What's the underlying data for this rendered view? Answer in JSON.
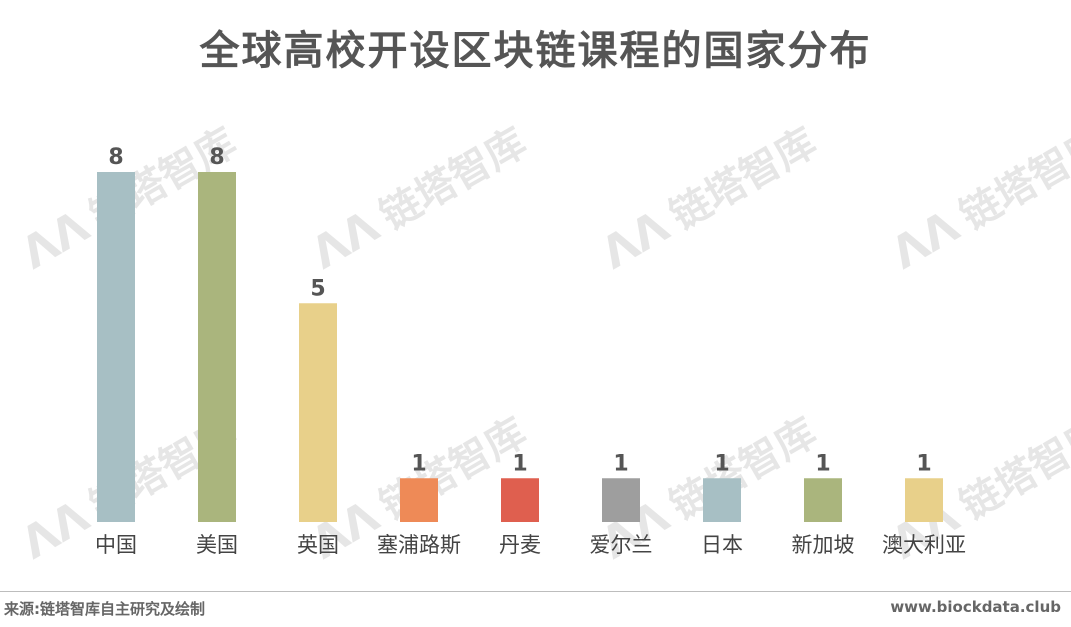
{
  "title": "全球高校开设区块链课程的国家分布",
  "watermark": {
    "text": "链塔智库",
    "logo": "ΛΛ"
  },
  "footer": {
    "source": "来源:链塔智库自主研究及绘制",
    "site": "www.biockdata.club"
  },
  "chart_data": {
    "type": "bar",
    "title": "全球高校开设区块链课程的国家分布",
    "categories": [
      "中国",
      "美国",
      "英国",
      "塞浦路斯",
      "丹麦",
      "爱尔兰",
      "日本",
      "新加坡",
      "澳大利亚"
    ],
    "values": [
      8,
      8,
      5,
      1,
      1,
      1,
      1,
      1,
      1
    ],
    "colors": [
      "#a7bfc4",
      "#aab57d",
      "#e8d08a",
      "#ee8a57",
      "#df5f4f",
      "#9e9e9e",
      "#a7bfc4",
      "#aab57d",
      "#e8d08a"
    ],
    "xlabel": "",
    "ylabel": "",
    "ylim": [
      0,
      8
    ],
    "grid": false,
    "legend": "none",
    "data_labels": true
  }
}
